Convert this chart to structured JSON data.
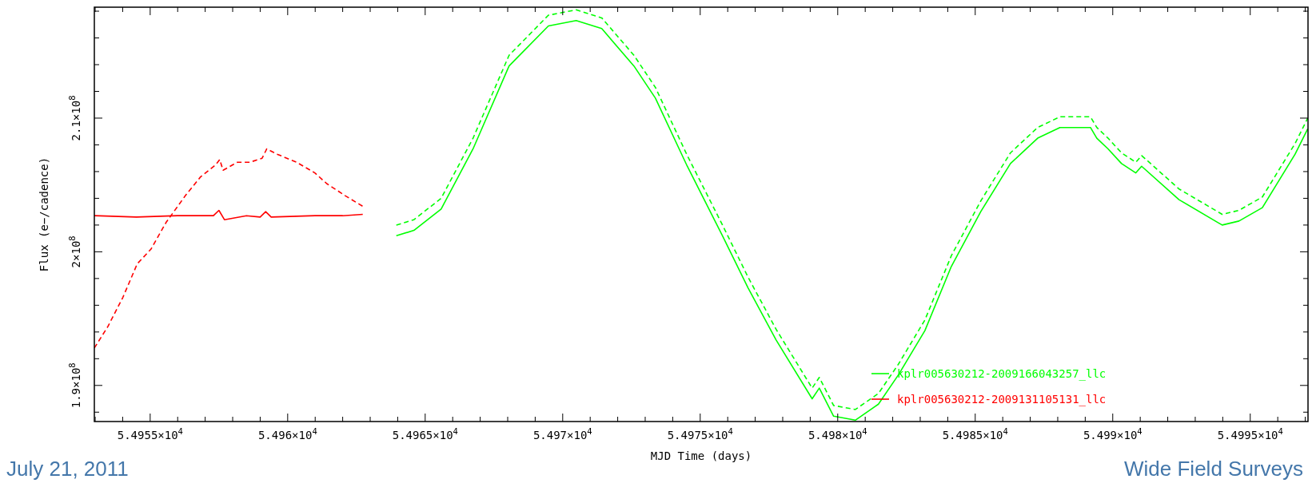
{
  "chart_data": {
    "type": "line",
    "xlabel": "MJD Time (days)",
    "ylabel": "Flux (e−/cadence)",
    "xlim": [
      54952.97,
      54997.1
    ],
    "ylim": [
      187300000.0,
      218300000.0
    ],
    "xticks": [
      {
        "value": 54953,
        "label": null
      },
      {
        "value": 54954,
        "label": null
      },
      {
        "value": 54955,
        "label": "5.4955×10$^{4}$"
      },
      {
        "value": 54956,
        "label": null
      },
      {
        "value": 54957,
        "label": null
      },
      {
        "value": 54958,
        "label": null
      },
      {
        "value": 54959,
        "label": null
      },
      {
        "value": 54960,
        "label": "5.496×10$^{4}$"
      },
      {
        "value": 54961,
        "label": null
      },
      {
        "value": 54962,
        "label": null
      },
      {
        "value": 54963,
        "label": null
      },
      {
        "value": 54964,
        "label": null
      },
      {
        "value": 54965,
        "label": "5.4965×10$^{4}$"
      },
      {
        "value": 54966,
        "label": null
      },
      {
        "value": 54967,
        "label": null
      },
      {
        "value": 54968,
        "label": null
      },
      {
        "value": 54969,
        "label": null
      },
      {
        "value": 54970,
        "label": "5.497×10$^{4}$"
      },
      {
        "value": 54971,
        "label": null
      },
      {
        "value": 54972,
        "label": null
      },
      {
        "value": 54973,
        "label": null
      },
      {
        "value": 54974,
        "label": null
      },
      {
        "value": 54975,
        "label": "5.4975×10$^{4}$"
      },
      {
        "value": 54976,
        "label": null
      },
      {
        "value": 54977,
        "label": null
      },
      {
        "value": 54978,
        "label": null
      },
      {
        "value": 54979,
        "label": null
      },
      {
        "value": 54980,
        "label": "5.498×10$^{4}$"
      },
      {
        "value": 54981,
        "label": null
      },
      {
        "value": 54982,
        "label": null
      },
      {
        "value": 54983,
        "label": null
      },
      {
        "value": 54984,
        "label": null
      },
      {
        "value": 54985,
        "label": "5.4985×10$^{4}$"
      },
      {
        "value": 54986,
        "label": null
      },
      {
        "value": 54987,
        "label": null
      },
      {
        "value": 54988,
        "label": null
      },
      {
        "value": 54989,
        "label": null
      },
      {
        "value": 54990,
        "label": "5.499×10$^{4}$"
      },
      {
        "value": 54991,
        "label": null
      },
      {
        "value": 54992,
        "label": null
      },
      {
        "value": 54993,
        "label": null
      },
      {
        "value": 54994,
        "label": null
      },
      {
        "value": 54995,
        "label": "5.4995×10$^{4}$"
      },
      {
        "value": 54996,
        "label": null
      },
      {
        "value": 54997,
        "label": null
      }
    ],
    "yticks": [
      {
        "value": 188000000.0,
        "label": null
      },
      {
        "value": 190000000.0,
        "label": "1.9×10$^{8}$"
      },
      {
        "value": 192000000.0,
        "label": null
      },
      {
        "value": 194000000.0,
        "label": null
      },
      {
        "value": 196000000.0,
        "label": null
      },
      {
        "value": 198000000.0,
        "label": null
      },
      {
        "value": 200000000.0,
        "label": "2×10$^{8}$"
      },
      {
        "value": 202000000.0,
        "label": null
      },
      {
        "value": 204000000.0,
        "label": null
      },
      {
        "value": 206000000.0,
        "label": null
      },
      {
        "value": 208000000.0,
        "label": null
      },
      {
        "value": 210000000.0,
        "label": "2.1×10$^{8}$"
      },
      {
        "value": 212000000.0,
        "label": null
      },
      {
        "value": 214000000.0,
        "label": null
      },
      {
        "value": 216000000.0,
        "label": null
      },
      {
        "value": 218000000.0,
        "label": null
      }
    ],
    "legend": "bottom right",
    "grid": false,
    "annotations": [
      "July 21, 2011",
      "Wide Field Surveys"
    ],
    "series": [
      {
        "name": "kplr005630212-2009166043257_llc",
        "color": "#00ff00",
        "line_style": "solid",
        "x": [
          54963.95,
          54964.59,
          54965.58,
          54966.74,
          54968.05,
          54969.48,
          54970.49,
          54971.42,
          54972.59,
          54973.37,
          54974.53,
          54975.81,
          54976.74,
          54977.76,
          54979.07,
          54979.33,
          54979.85,
          54980.64,
          54981.48,
          54982.21,
          54983.17,
          54984.13,
          54985.2,
          54986.28,
          54987.27,
          54988.08,
          54989.19,
          54989.42,
          54989.83,
          54990.32,
          54990.84,
          54991.05,
          54992.41,
          54993.98,
          54994.59,
          54995.44,
          54996.63,
          54997.09
        ],
        "values": [
          201200000.0,
          201600000.0,
          203200000.0,
          207700000.0,
          213900000.0,
          216900000.0,
          217300000.0,
          216700000.0,
          213900000.0,
          211500000.0,
          206400000.0,
          201200000.0,
          197300000.0,
          193400000.0,
          189000000.0,
          189800000.0,
          187700000.0,
          187400000.0,
          188600000.0,
          190800000.0,
          194100000.0,
          198900000.0,
          203000000.0,
          206600000.0,
          208500000.0,
          209300000.0,
          209300000.0,
          208500000.0,
          207700000.0,
          206600000.0,
          205900000.0,
          206400000.0,
          203900000.0,
          202000000.0,
          202300000.0,
          203300000.0,
          207300000.0,
          209200000.0
        ]
      },
      {
        "color": "#00ff00",
        "line_style": "dashed",
        "x": [
          54963.95,
          54964.59,
          54965.58,
          54966.74,
          54968.05,
          54969.48,
          54970.49,
          54971.42,
          54972.59,
          54973.37,
          54974.53,
          54975.81,
          54976.74,
          54977.76,
          54979.07,
          54979.33,
          54979.85,
          54980.64,
          54981.48,
          54982.21,
          54983.17,
          54984.13,
          54985.2,
          54986.28,
          54987.27,
          54988.08,
          54989.19,
          54989.42,
          54989.83,
          54990.32,
          54990.84,
          54991.05,
          54992.41,
          54993.98,
          54994.59,
          54995.44,
          54996.63,
          54997.09
        ],
        "values": [
          202000000.0,
          202400000.0,
          204000000.0,
          208500000.0,
          214700000.0,
          217700000.0,
          218100000.0,
          217500000.0,
          214700000.0,
          212300000.0,
          207200000.0,
          202000000.0,
          198100000.0,
          194200000.0,
          189800000.0,
          190600000.0,
          188500000.0,
          188200000.0,
          189400000.0,
          191600000.0,
          194900000.0,
          199700000.0,
          203800000.0,
          207400000.0,
          209300000.0,
          210100000.0,
          210100000.0,
          209300000.0,
          208500000.0,
          207400000.0,
          206700000.0,
          207200000.0,
          204700000.0,
          202800000.0,
          203100000.0,
          204100000.0,
          208100000.0,
          210000000.0
        ]
      },
      {
        "name": "kplr005630212-2009131105131_llc",
        "color": "#ff0000",
        "line_style": "solid",
        "x": [
          54952.97,
          54954.5,
          54956.0,
          54957.3,
          54957.5,
          54957.7,
          54958.5,
          54959.0,
          54959.2,
          54959.4,
          54961.0,
          54962.0,
          54962.73
        ],
        "values": [
          202700000.0,
          202600000.0,
          202700000.0,
          202700000.0,
          203100000.0,
          202400000.0,
          202700000.0,
          202600000.0,
          203000000.0,
          202600000.0,
          202700000.0,
          202700000.0,
          202800000.0
        ]
      },
      {
        "color": "#ff0000",
        "line_style": "dashed",
        "x": [
          54952.97,
          54953.46,
          54954.01,
          54954.53,
          54955.03,
          54955.58,
          54956.28,
          54956.83,
          54957.38,
          54957.53,
          54957.65,
          54958.17,
          54958.63,
          54959.07,
          54959.24,
          54959.62,
          54960.32,
          54960.99,
          54961.42,
          54962.09,
          54962.73
        ],
        "values": [
          192800000.0,
          194400000.0,
          196600000.0,
          199100000.0,
          200200000.0,
          202200000.0,
          204200000.0,
          205600000.0,
          206500000.0,
          206900000.0,
          206100000.0,
          206700000.0,
          206700000.0,
          207000000.0,
          207700000.0,
          207300000.0,
          206700000.0,
          205900000.0,
          205100000.0,
          204200000.0,
          203400000.0
        ]
      }
    ]
  }
}
